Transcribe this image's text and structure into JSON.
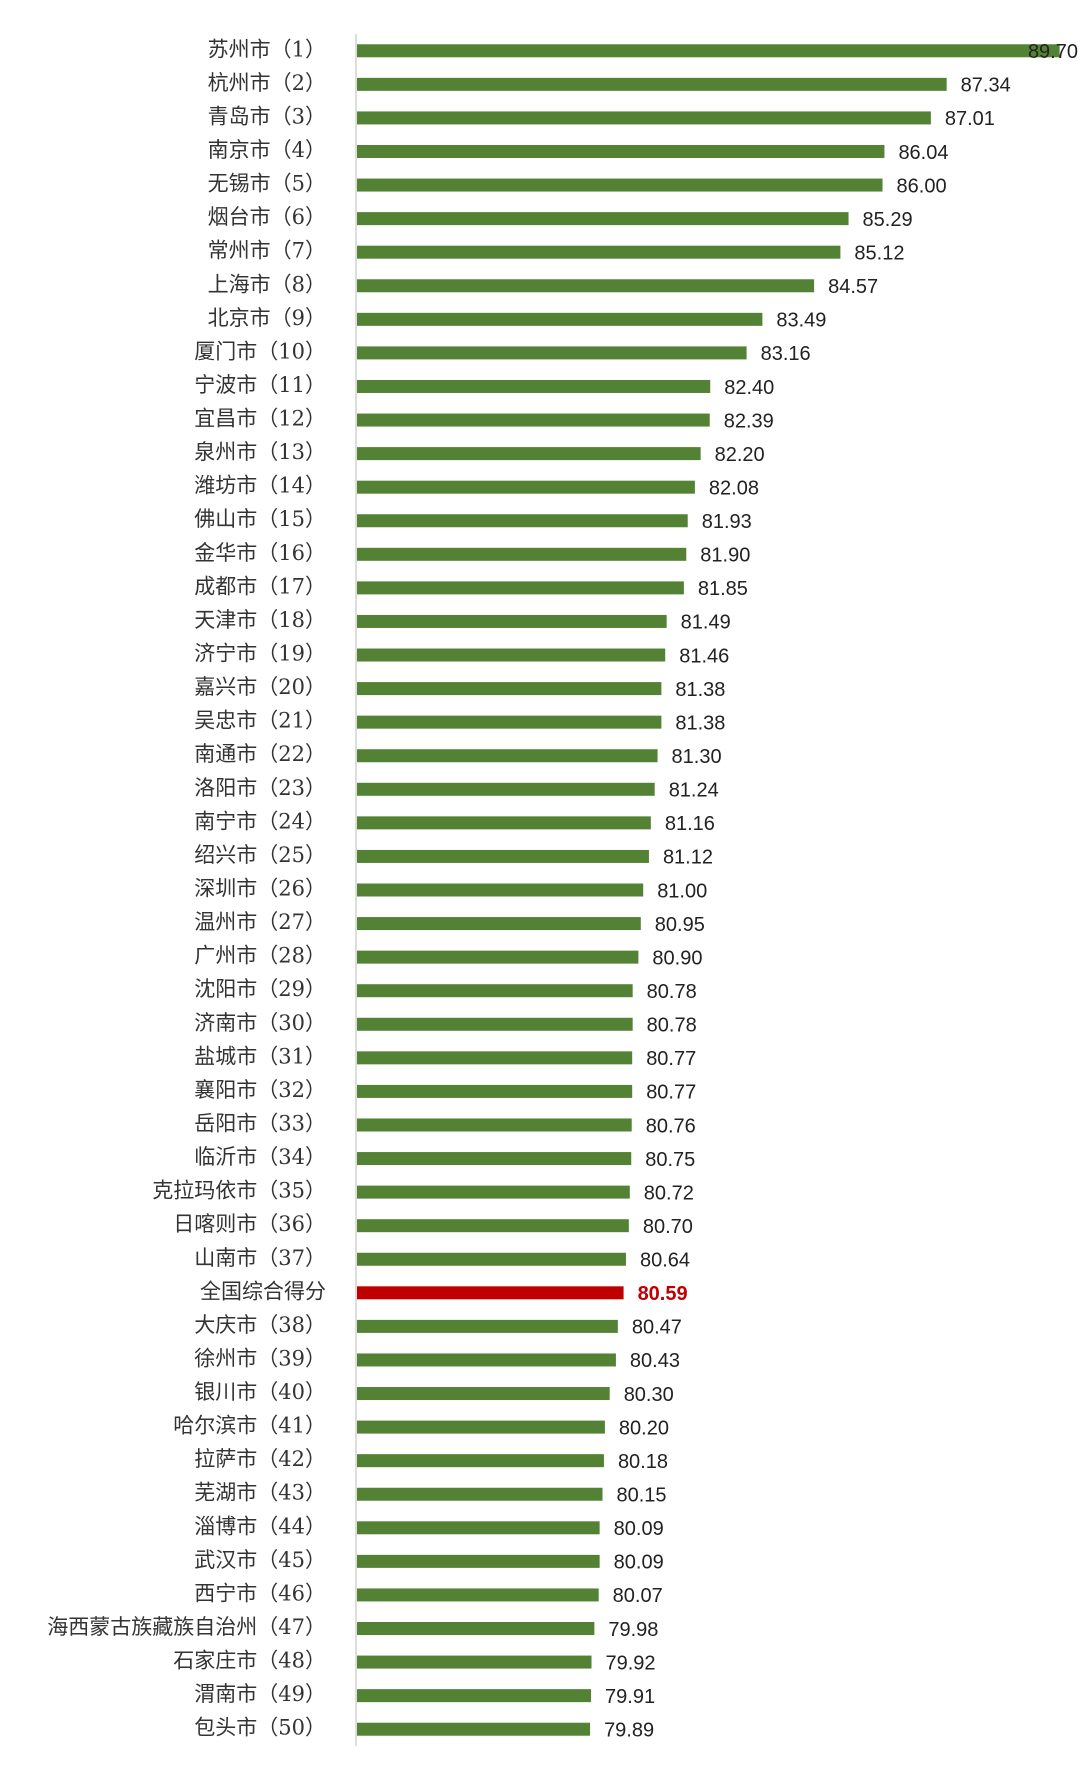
{
  "chart_data": {
    "type": "hbar",
    "categories": [
      "苏州市（1）",
      "杭州市（2）",
      "青岛市（3）",
      "南京市（4）",
      "无锡市（5）",
      "烟台市（6）",
      "常州市（7）",
      "上海市（8）",
      "北京市（9）",
      "厦门市（10）",
      "宁波市（11）",
      "宜昌市（12）",
      "泉州市（13）",
      "潍坊市（14）",
      "佛山市（15）",
      "金华市（16）",
      "成都市（17）",
      "天津市（18）",
      "济宁市（19）",
      "嘉兴市（20）",
      "吴忠市（21）",
      "南通市（22）",
      "洛阳市（23）",
      "南宁市（24）",
      "绍兴市（25）",
      "深圳市（26）",
      "温州市（27）",
      "广州市（28）",
      "沈阳市（29）",
      "济南市（30）",
      "盐城市（31）",
      "襄阳市（32）",
      "岳阳市（33）",
      "临沂市（34）",
      "克拉玛依市（35）",
      "日喀则市（36）",
      "山南市（37）",
      "全国综合得分",
      "大庆市（38）",
      "徐州市（39）",
      "银川市（40）",
      "哈尔滨市（41）",
      "拉萨市（42）",
      "芜湖市（43）",
      "淄博市（44）",
      "武汉市（45）",
      "西宁市（46）",
      "海西蒙古族藏族自治州（47）",
      "石家庄市（48）",
      "渭南市（49）",
      "包头市（50）"
    ],
    "values": [
      89.7,
      87.34,
      87.01,
      86.04,
      86.0,
      85.29,
      85.12,
      84.57,
      83.49,
      83.16,
      82.4,
      82.39,
      82.2,
      82.08,
      81.93,
      81.9,
      81.85,
      81.49,
      81.46,
      81.38,
      81.38,
      81.3,
      81.24,
      81.16,
      81.12,
      81.0,
      80.95,
      80.9,
      80.78,
      80.78,
      80.77,
      80.77,
      80.76,
      80.75,
      80.72,
      80.7,
      80.64,
      80.59,
      80.47,
      80.43,
      80.3,
      80.2,
      80.18,
      80.15,
      80.09,
      80.09,
      80.07,
      79.98,
      79.92,
      79.91,
      79.89
    ],
    "value_labels": [
      "89.70",
      "87.34",
      "87.01",
      "86.04",
      "86.00",
      "85.29",
      "85.12",
      "84.57",
      "83.49",
      "83.16",
      "82.40",
      "82.39",
      "82.20",
      "82.08",
      "81.93",
      "81.90",
      "81.85",
      "81.49",
      "81.46",
      "81.38",
      "81.38",
      "81.30",
      "81.24",
      "81.16",
      "81.12",
      "81.00",
      "80.95",
      "80.90",
      "80.78",
      "80.78",
      "80.77",
      "80.77",
      "80.76",
      "80.75",
      "80.72",
      "80.70",
      "80.64",
      "80.59",
      "80.47",
      "80.43",
      "80.30",
      "80.20",
      "80.18",
      "80.15",
      "80.09",
      "80.09",
      "80.07",
      "79.98",
      "79.92",
      "79.91",
      "79.89"
    ],
    "color": "#548235",
    "colors": [
      "#548235",
      "#548235",
      "#548235",
      "#548235",
      "#548235",
      "#548235",
      "#548235",
      "#548235",
      "#548235",
      "#548235",
      "#548235",
      "#548235",
      "#548235",
      "#548235",
      "#548235",
      "#548235",
      "#548235",
      "#548235",
      "#548235",
      "#548235",
      "#548235",
      "#548235",
      "#548235",
      "#548235",
      "#548235",
      "#548235",
      "#548235",
      "#548235",
      "#548235",
      "#548235",
      "#548235",
      "#548235",
      "#548235",
      "#548235",
      "#548235",
      "#548235",
      "#548235",
      "#c00000",
      "#548235",
      "#548235",
      "#548235",
      "#548235",
      "#548235",
      "#548235",
      "#548235",
      "#548235",
      "#548235",
      "#548235",
      "#548235",
      "#548235",
      "#548235"
    ],
    "xlim": [
      75,
      90
    ]
  }
}
